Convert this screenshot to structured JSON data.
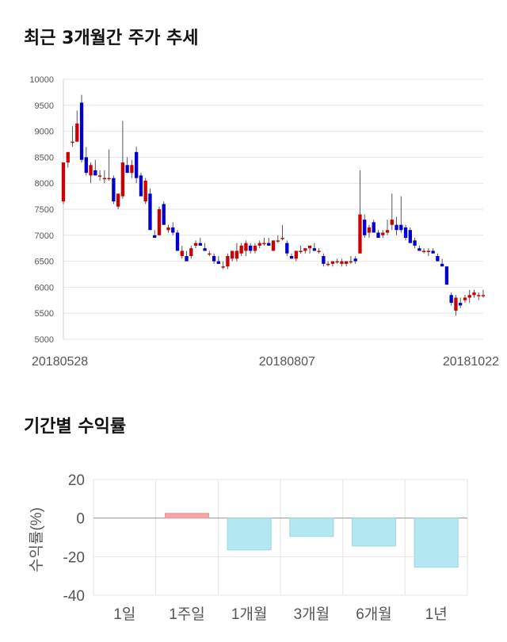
{
  "section1": {
    "title": "최근 3개월간 주가 추세"
  },
  "section2": {
    "title": "기간별 수익률"
  },
  "colors": {
    "up": "#cc0000",
    "down": "#0000cc",
    "wick": "#555555",
    "bar_pos": "#f4a6a6",
    "bar_neg": "#b3e7f2",
    "grid": "#e6e6e6"
  },
  "chart_data": [
    {
      "type": "candlestick",
      "title": "최근 3개월간 주가 추세",
      "ylim": [
        5000,
        10000
      ],
      "yticks": [
        5000,
        5500,
        6000,
        6500,
        7000,
        7500,
        8000,
        8500,
        9000,
        9500,
        10000
      ],
      "xtick_labels": [
        {
          "label": "20180528",
          "index": 0
        },
        {
          "label": "20180807",
          "index": 49
        },
        {
          "label": "20181022",
          "index": 101
        }
      ],
      "grid": true,
      "candles": [
        [
          7650,
          8400,
          7600,
          8400
        ],
        [
          8400,
          8600,
          8300,
          8600
        ],
        [
          8800,
          9100,
          8700,
          8800
        ],
        [
          8800,
          9400,
          8800,
          9150
        ],
        [
          9550,
          9700,
          8400,
          8450
        ],
        [
          8500,
          8700,
          8150,
          8200
        ],
        [
          8150,
          8400,
          8000,
          8350
        ],
        [
          8250,
          8450,
          8150,
          8150
        ],
        [
          8150,
          8250,
          8050,
          8150
        ],
        [
          8100,
          8250,
          8000,
          8100
        ],
        [
          8100,
          8650,
          8050,
          8100
        ],
        [
          8100,
          8150,
          7600,
          7650
        ],
        [
          7550,
          7800,
          7500,
          7800
        ],
        [
          7750,
          9200,
          7700,
          8400
        ],
        [
          8350,
          8500,
          8200,
          8200
        ],
        [
          8200,
          8450,
          8100,
          8350
        ],
        [
          8600,
          8700,
          8000,
          8100
        ],
        [
          8150,
          8200,
          7750,
          7750
        ],
        [
          7650,
          8100,
          7600,
          8050
        ],
        [
          7800,
          7900,
          7100,
          7100
        ],
        [
          7000,
          7100,
          6950,
          6950
        ],
        [
          7000,
          7550,
          7000,
          7500
        ],
        [
          7600,
          7650,
          7200,
          7200
        ],
        [
          7100,
          7200,
          7050,
          7150
        ],
        [
          7150,
          7250,
          7000,
          7050
        ],
        [
          7050,
          7100,
          6700,
          6700
        ],
        [
          6600,
          6800,
          6550,
          6700
        ],
        [
          6600,
          6700,
          6500,
          6500
        ],
        [
          6600,
          6800,
          6550,
          6750
        ],
        [
          6800,
          6900,
          6750,
          6850
        ],
        [
          6850,
          6950,
          6800,
          6800
        ],
        [
          6750,
          6850,
          6700,
          6700
        ],
        [
          6650,
          6700,
          6600,
          6650
        ],
        [
          6600,
          6650,
          6450,
          6500
        ],
        [
          6500,
          6600,
          6450,
          6450
        ],
        [
          6400,
          6500,
          6350,
          6400
        ],
        [
          6400,
          6650,
          6350,
          6600
        ],
        [
          6550,
          6700,
          6500,
          6700
        ],
        [
          6550,
          6850,
          6500,
          6700
        ],
        [
          6650,
          6850,
          6600,
          6800
        ],
        [
          6700,
          6900,
          6600,
          6850
        ],
        [
          6800,
          6850,
          6650,
          6700
        ],
        [
          6700,
          6850,
          6650,
          6800
        ],
        [
          6800,
          6900,
          6750,
          6850
        ],
        [
          6850,
          6950,
          6800,
          6850
        ],
        [
          6850,
          6950,
          6800,
          6800
        ],
        [
          6700,
          6900,
          6700,
          6900
        ],
        [
          6900,
          7000,
          6850,
          6900
        ],
        [
          6950,
          7200,
          6900,
          6950
        ],
        [
          6850,
          6900,
          6600,
          6650
        ],
        [
          6600,
          6650,
          6550,
          6550
        ],
        [
          6550,
          6700,
          6500,
          6700
        ],
        [
          6700,
          6800,
          6650,
          6700
        ],
        [
          6700,
          6750,
          6650,
          6750
        ],
        [
          6750,
          6800,
          6650,
          6800
        ],
        [
          6750,
          6850,
          6700,
          6700
        ],
        [
          6700,
          6750,
          6650,
          6700
        ],
        [
          6600,
          6650,
          6400,
          6450
        ],
        [
          6450,
          6500,
          6400,
          6450
        ],
        [
          6450,
          6500,
          6400,
          6500
        ],
        [
          6500,
          6550,
          6450,
          6500
        ],
        [
          6450,
          6550,
          6400,
          6500
        ],
        [
          6450,
          6500,
          6400,
          6500
        ],
        [
          6500,
          6600,
          6450,
          6500
        ],
        [
          6550,
          6600,
          6450,
          6500
        ],
        [
          6650,
          8250,
          6650,
          7400
        ],
        [
          7300,
          7400,
          6950,
          7000
        ],
        [
          7050,
          7200,
          6950,
          7150
        ],
        [
          7250,
          7300,
          7050,
          7050
        ],
        [
          7050,
          7100,
          6950,
          6950
        ],
        [
          7000,
          7100,
          6950,
          7050
        ],
        [
          7050,
          7300,
          7000,
          7100
        ],
        [
          7200,
          7800,
          7100,
          7300
        ],
        [
          7200,
          7350,
          7000,
          7100
        ],
        [
          7200,
          7750,
          7050,
          7100
        ],
        [
          7150,
          7200,
          6900,
          6950
        ],
        [
          7100,
          7150,
          6850,
          6850
        ],
        [
          6900,
          6950,
          6750,
          6800
        ],
        [
          6750,
          6800,
          6700,
          6700
        ],
        [
          6700,
          6750,
          6650,
          6700
        ],
        [
          6700,
          6750,
          6600,
          6700
        ],
        [
          6700,
          6750,
          6650,
          6650
        ],
        [
          6600,
          6650,
          6500,
          6500
        ],
        [
          6450,
          6550,
          6400,
          6400
        ],
        [
          6400,
          6400,
          6050,
          6050
        ],
        [
          5850,
          5900,
          5650,
          5700
        ],
        [
          5550,
          5850,
          5450,
          5800
        ],
        [
          5700,
          5800,
          5600,
          5650
        ],
        [
          5750,
          5850,
          5700,
          5800
        ],
        [
          5800,
          5950,
          5700,
          5850
        ],
        [
          5850,
          5950,
          5800,
          5900
        ],
        [
          5850,
          5900,
          5750,
          5850
        ],
        [
          5850,
          5950,
          5800,
          5850
        ]
      ]
    },
    {
      "type": "bar",
      "title": "기간별 수익률",
      "ylabel": "수익률(%)",
      "ylim": [
        -40,
        20
      ],
      "yticks": [
        20,
        0,
        -20,
        -40
      ],
      "categories": [
        "1일",
        "1주일",
        "1개월",
        "3개월",
        "6개월",
        "1년"
      ],
      "values": [
        0,
        2.5,
        -16.5,
        -9.5,
        -14.5,
        -25.5
      ],
      "grid": true
    }
  ]
}
